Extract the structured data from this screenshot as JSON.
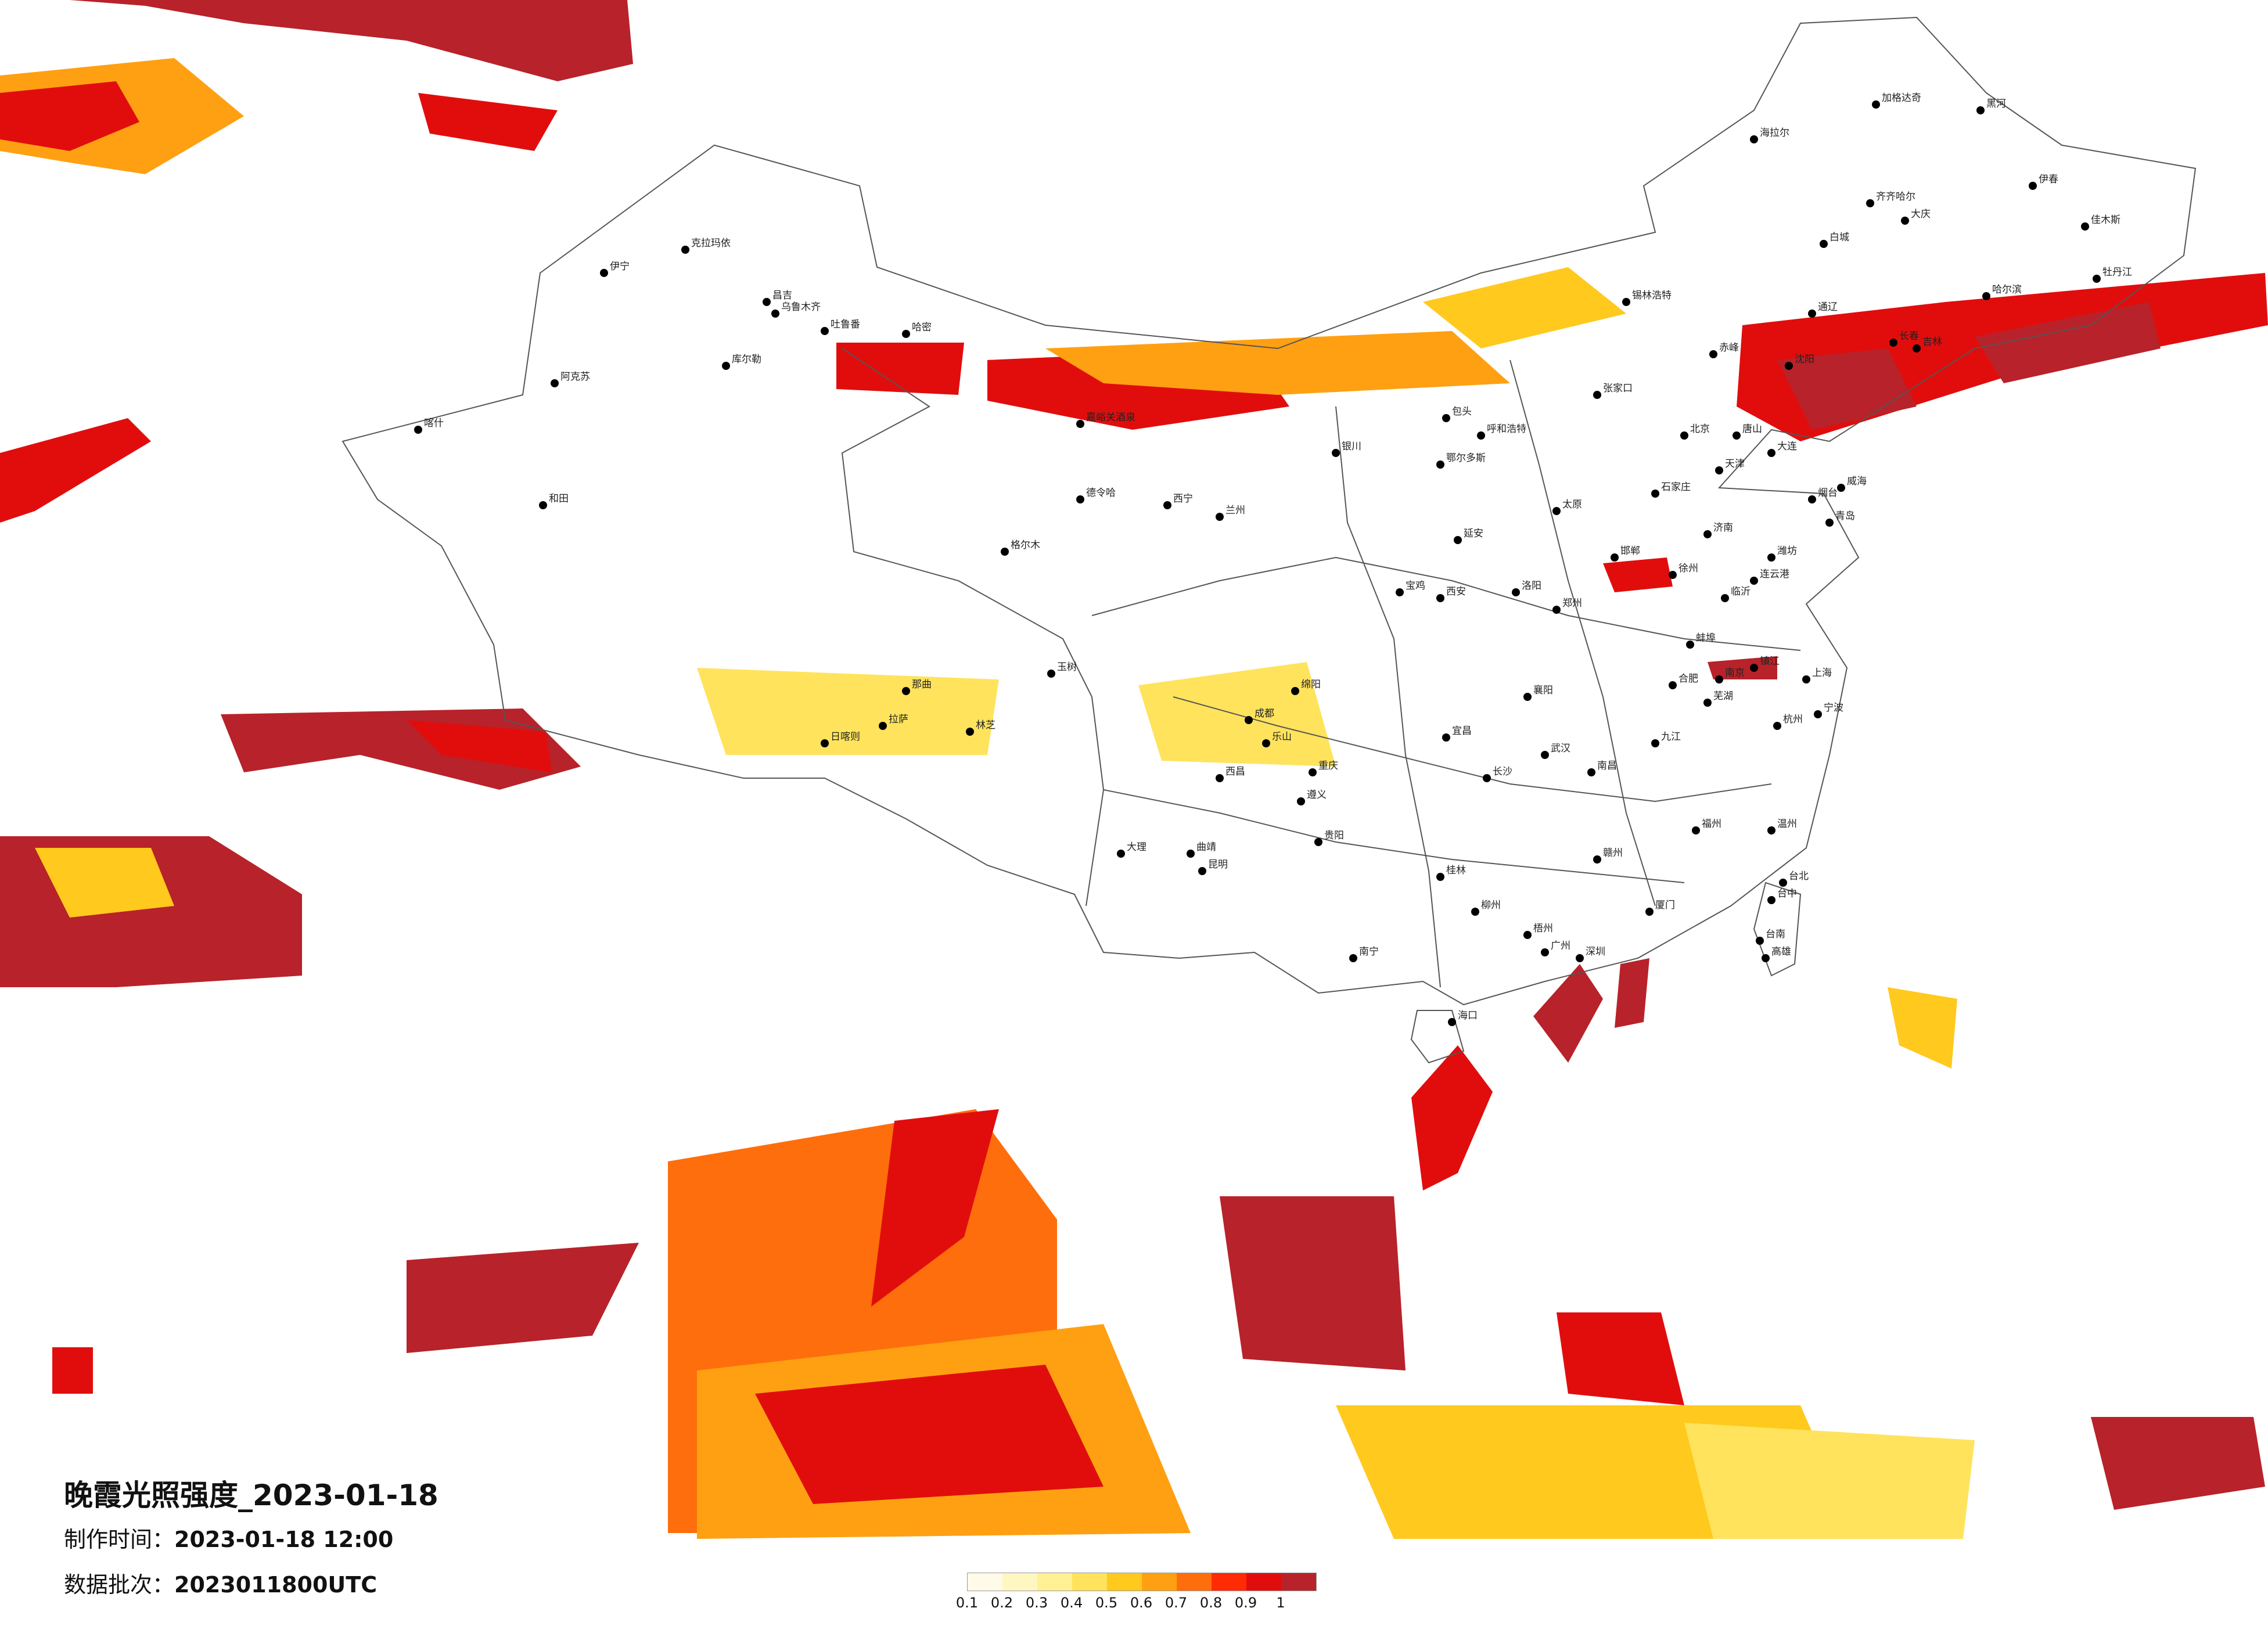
{
  "title": "晚霞光照强度_2023-01-18",
  "made_label": "制作时间：",
  "made_value": "2023-01-18 12:00",
  "batch_label": "数据批次：",
  "batch_value": "2023011800UTC",
  "legend": {
    "ticks": [
      "0.1",
      "0.2",
      "0.3",
      "0.4",
      "0.5",
      "0.6",
      "0.7",
      "0.8",
      "0.9",
      "1"
    ],
    "colors": [
      "#fffbe8",
      "#fff7c2",
      "#fff194",
      "#ffe35c",
      "#ffc91e",
      "#ffa012",
      "#ff6e0c",
      "#ff2a06",
      "#e10d0d",
      "#b8222a"
    ]
  },
  "cities": [
    {
      "name": "克拉玛依"
    },
    {
      "name": "伊宁"
    },
    {
      "name": "昌吉"
    },
    {
      "name": "乌鲁木齐"
    },
    {
      "name": "吐鲁番"
    },
    {
      "name": "哈密"
    },
    {
      "name": "库尔勒"
    },
    {
      "name": "阿克苏"
    },
    {
      "name": "喀什"
    },
    {
      "name": "和田"
    },
    {
      "name": "嘉峪关酒泉"
    },
    {
      "name": "德令哈"
    },
    {
      "name": "格尔木"
    },
    {
      "name": "西宁"
    },
    {
      "name": "兰州"
    },
    {
      "name": "银川"
    },
    {
      "name": "呼和浩特"
    },
    {
      "name": "包头"
    },
    {
      "name": "鄂尔多斯"
    },
    {
      "name": "张家口"
    },
    {
      "name": "北京"
    },
    {
      "name": "天津"
    },
    {
      "name": "唐山"
    },
    {
      "name": "石家庄"
    },
    {
      "name": "太原"
    },
    {
      "name": "济南"
    },
    {
      "name": "青岛"
    },
    {
      "name": "郑州"
    },
    {
      "name": "西安"
    },
    {
      "name": "宝鸡"
    },
    {
      "name": "延安"
    },
    {
      "name": "徐州"
    },
    {
      "name": "连云港"
    },
    {
      "name": "南京"
    },
    {
      "name": "镇江"
    },
    {
      "name": "上海"
    },
    {
      "name": "杭州"
    },
    {
      "name": "宁波"
    },
    {
      "name": "温州"
    },
    {
      "name": "合肥"
    },
    {
      "name": "武汉"
    },
    {
      "name": "长沙"
    },
    {
      "name": "南昌"
    },
    {
      "name": "福州"
    },
    {
      "name": "厦门"
    },
    {
      "name": "广州"
    },
    {
      "name": "深圳"
    },
    {
      "name": "海口"
    },
    {
      "name": "南宁"
    },
    {
      "name": "桂林"
    },
    {
      "name": "贵阳"
    },
    {
      "name": "昆明"
    },
    {
      "name": "大理"
    },
    {
      "name": "成都"
    },
    {
      "name": "重庆"
    },
    {
      "name": "拉萨"
    },
    {
      "name": "日喀则"
    },
    {
      "name": "那曲"
    },
    {
      "name": "玉树"
    },
    {
      "name": "林芝"
    },
    {
      "name": "沈阳"
    },
    {
      "name": "大连"
    },
    {
      "name": "长春"
    },
    {
      "name": "吉林"
    },
    {
      "name": "哈尔滨"
    },
    {
      "name": "齐齐哈尔"
    },
    {
      "name": "大庆"
    },
    {
      "name": "牡丹江"
    },
    {
      "name": "佳木斯"
    },
    {
      "name": "伊春"
    },
    {
      "name": "海拉尔"
    },
    {
      "name": "加格达奇"
    },
    {
      "name": "黑河"
    },
    {
      "name": "锡林浩特"
    },
    {
      "name": "赤峰"
    },
    {
      "name": "通辽"
    },
    {
      "name": "白城"
    },
    {
      "name": "台北"
    },
    {
      "name": "台中"
    },
    {
      "name": "台南"
    },
    {
      "name": "高雄"
    },
    {
      "name": "邯郸"
    },
    {
      "name": "洛阳"
    },
    {
      "name": "襄阳"
    },
    {
      "name": "宜昌"
    },
    {
      "name": "绵阳"
    },
    {
      "name": "乐山"
    },
    {
      "name": "西昌"
    },
    {
      "name": "曲靖"
    },
    {
      "name": "遵义"
    },
    {
      "name": "柳州"
    },
    {
      "name": "梧州"
    },
    {
      "name": "赣州"
    },
    {
      "name": "九江"
    },
    {
      "name": "芜湖"
    },
    {
      "name": "蚌埠"
    },
    {
      "name": "临沂"
    },
    {
      "name": "潍坊"
    },
    {
      "name": "烟台"
    },
    {
      "name": "威海"
    }
  ]
}
